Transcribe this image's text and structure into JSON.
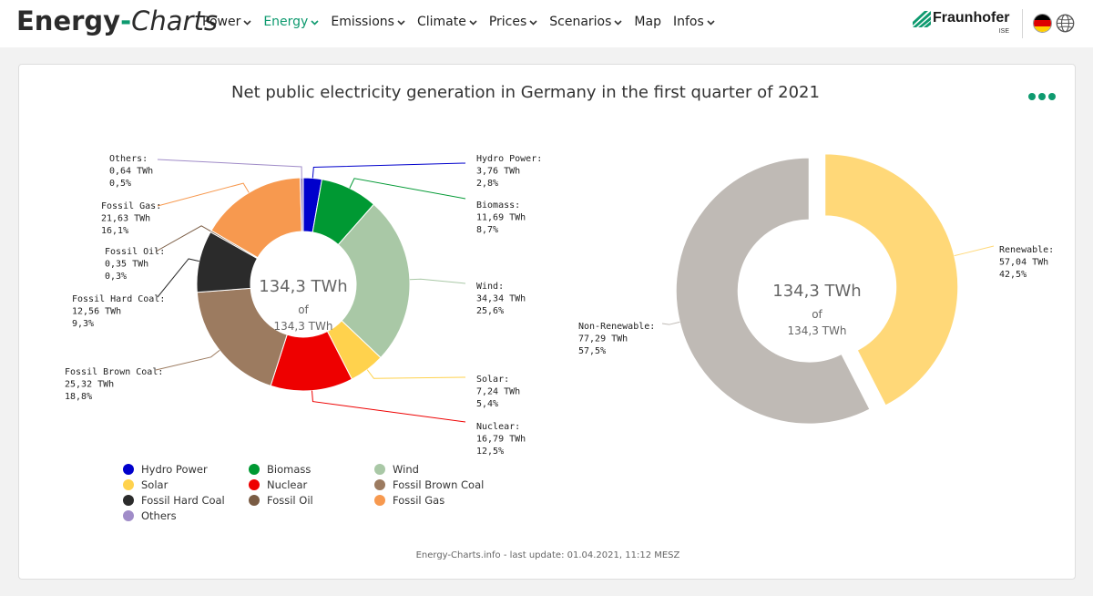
{
  "header": {
    "logo_bold": "Energy",
    "logo_dash": "-",
    "logo_italic": "Charts",
    "nav": [
      {
        "label": "Power"
      },
      {
        "label": "Energy"
      },
      {
        "label": "Emissions"
      },
      {
        "label": "Climate"
      },
      {
        "label": "Prices"
      },
      {
        "label": "Scenarios"
      },
      {
        "label": "Map"
      },
      {
        "label": "Infos"
      }
    ],
    "active_nav": "Energy",
    "brand_name": "Fraunhofer",
    "brand_sub": "ISE",
    "accent_color": "#0e9a6f"
  },
  "footer": "Energy-Charts.info - last update: 01.04.2021, 11:12 MESZ",
  "chart_data": [
    {
      "type": "pie",
      "style": "donut",
      "title": "Net public electricity generation in Germany in the first quarter of 2021",
      "center_label": {
        "total": "134,3 TWh",
        "of": "of",
        "sub": "134,3 TWh"
      },
      "slices": [
        {
          "name": "Hydro Power",
          "value": 3.76,
          "value_label": "3,76 TWh",
          "percent_label": "2,8%",
          "color": "#0000cc"
        },
        {
          "name": "Biomass",
          "value": 11.69,
          "value_label": "11,69 TWh",
          "percent_label": "8,7%",
          "color": "#009933"
        },
        {
          "name": "Wind",
          "value": 34.34,
          "value_label": "34,34 TWh",
          "percent_label": "25,6%",
          "color": "#a9c8a6"
        },
        {
          "name": "Solar",
          "value": 7.24,
          "value_label": "7,24 TWh",
          "percent_label": "5,4%",
          "color": "#ffd24d"
        },
        {
          "name": "Nuclear",
          "value": 16.79,
          "value_label": "16,79 TWh",
          "percent_label": "12,5%",
          "color": "#ee0000"
        },
        {
          "name": "Fossil Brown Coal",
          "value": 25.32,
          "value_label": "25,32 TWh",
          "percent_label": "18,8%",
          "color": "#9c7b60"
        },
        {
          "name": "Fossil Hard Coal",
          "value": 12.56,
          "value_label": "12,56 TWh",
          "percent_label": "9,3%",
          "color": "#2b2b2b"
        },
        {
          "name": "Fossil Oil",
          "value": 0.35,
          "value_label": "0,35 TWh",
          "percent_label": "0,3%",
          "color": "#7a5c44"
        },
        {
          "name": "Fossil Gas",
          "value": 21.63,
          "value_label": "21,63 TWh",
          "percent_label": "16,1%",
          "color": "#f7994f"
        },
        {
          "name": "Others",
          "value": 0.64,
          "value_label": "0,64 TWh",
          "percent_label": "0,5%",
          "color": "#a08cc8"
        }
      ],
      "legend": [
        "Hydro Power",
        "Biomass",
        "Wind",
        "Solar",
        "Nuclear",
        "Fossil Brown Coal",
        "Fossil Hard Coal",
        "Fossil Oil",
        "Fossil Gas",
        "Others"
      ],
      "legend_placement": "bottom-left"
    },
    {
      "type": "pie",
      "style": "donut",
      "center_label": {
        "total": "134,3 TWh",
        "of": "of",
        "sub": "134,3 TWh"
      },
      "slices": [
        {
          "name": "Renewable",
          "value": 57.04,
          "value_label": "57,04 TWh",
          "percent_label": "42,5%",
          "color": "#ffd878"
        },
        {
          "name": "Non-Renewable",
          "value": 77.29,
          "value_label": "77,29 TWh",
          "percent_label": "57,5%",
          "color": "#bfbab5"
        }
      ]
    }
  ]
}
